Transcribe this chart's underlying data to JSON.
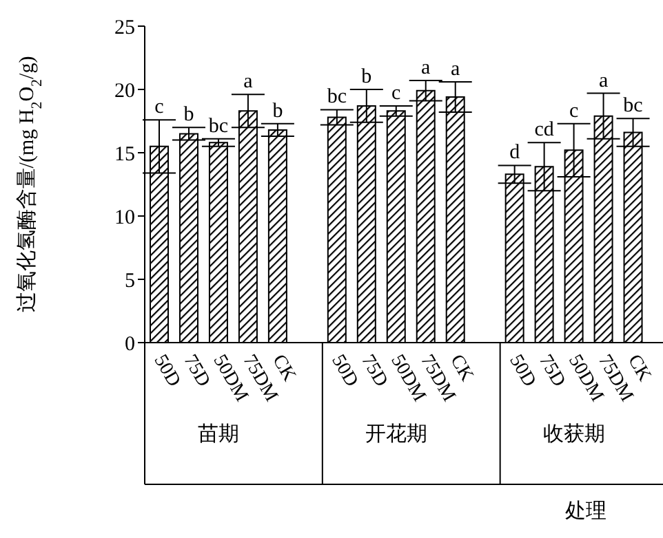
{
  "chart_data": {
    "type": "bar",
    "ylabel": "过氧化氢酶含量/(mg H$_{2}$O$_{2}$/g)",
    "xlabel": "处理",
    "categories": [
      "50D",
      "75D",
      "50DM",
      "75DM",
      "CK",
      "50D",
      "75D",
      "50DM",
      "75DM",
      "CK",
      "50D",
      "75D",
      "50DM",
      "75DM",
      "CK"
    ],
    "annotations": [
      "苗期",
      "开花期",
      "收获期"
    ],
    "values": [
      15.5,
      16.5,
      15.8,
      18.3,
      16.8,
      17.8,
      18.7,
      18.3,
      19.9,
      19.4,
      13.3,
      13.9,
      15.2,
      17.9,
      16.6
    ],
    "errors": [
      2.1,
      0.5,
      0.3,
      1.3,
      0.5,
      0.6,
      1.3,
      0.4,
      0.8,
      1.2,
      0.7,
      1.9,
      2.1,
      1.8,
      1.1
    ],
    "value_labels": [
      "c",
      "b",
      "bc",
      "a",
      "b",
      "bc",
      "b",
      "c",
      "a",
      "a",
      "d",
      "cd",
      "c",
      "a",
      "bc"
    ],
    "color": "#000000",
    "ylim": [
      0,
      25
    ],
    "yticks": [
      0,
      5,
      10,
      15,
      20,
      25
    ]
  }
}
